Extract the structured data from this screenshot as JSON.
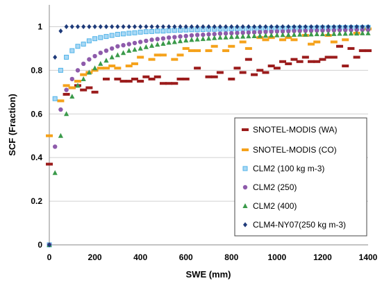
{
  "chart_data": {
    "type": "scatter",
    "xlabel": "SWE (mm)",
    "ylabel": "SCF (Fraction)",
    "xlim": [
      0,
      1400
    ],
    "ylim": [
      0,
      1.1
    ],
    "xticks": [
      "0",
      "200",
      "400",
      "600",
      "800",
      "1000",
      "1200",
      "1400"
    ],
    "yticks": [
      "0",
      "0.2",
      "0.4",
      "0.6",
      "0.8",
      "1"
    ],
    "grid": "horizontal",
    "legend_position": "right",
    "series": [
      {
        "name": "SNOTEL-MODIS (WA)",
        "marker": "dash",
        "color": "#9b1c1c",
        "x": [
          0,
          75,
          100,
          125,
          150,
          175,
          200,
          250,
          300,
          325,
          350,
          375,
          400,
          425,
          450,
          475,
          500,
          525,
          550,
          575,
          600,
          650,
          700,
          725,
          750,
          800,
          825,
          850,
          875,
          900,
          925,
          950,
          975,
          1000,
          1025,
          1050,
          1075,
          1100,
          1125,
          1150,
          1175,
          1200,
          1225,
          1250,
          1275,
          1300,
          1325,
          1350,
          1375,
          1400
        ],
        "y": [
          0.37,
          0.69,
          0.72,
          0.73,
          0.71,
          0.72,
          0.7,
          0.76,
          0.76,
          0.75,
          0.75,
          0.76,
          0.75,
          0.77,
          0.76,
          0.77,
          0.74,
          0.74,
          0.74,
          0.76,
          0.76,
          0.81,
          0.77,
          0.77,
          0.79,
          0.76,
          0.81,
          0.79,
          0.85,
          0.78,
          0.8,
          0.79,
          0.82,
          0.81,
          0.84,
          0.83,
          0.85,
          0.84,
          0.86,
          0.84,
          0.84,
          0.85,
          0.86,
          0.86,
          0.91,
          0.82,
          0.9,
          0.86,
          0.89,
          0.89
        ]
      },
      {
        "name": "SNOTEL-MODIS (CO)",
        "marker": "dash",
        "color": "#f5a21b",
        "x": [
          0,
          50,
          75,
          100,
          125,
          150,
          175,
          200,
          225,
          250,
          275,
          300,
          350,
          375,
          400,
          450,
          475,
          500,
          550,
          575,
          600,
          625,
          650,
          700,
          725,
          775,
          800,
          850,
          875,
          925,
          950,
          975,
          1025,
          1050,
          1075,
          1125,
          1150,
          1175,
          1225,
          1250,
          1300,
          1350,
          1400
        ],
        "y": [
          0.5,
          0.66,
          0.73,
          0.72,
          0.75,
          0.78,
          0.79,
          0.8,
          0.81,
          0.81,
          0.82,
          0.81,
          0.82,
          0.83,
          0.86,
          0.85,
          0.87,
          0.87,
          0.85,
          0.87,
          0.9,
          0.89,
          0.89,
          0.89,
          0.91,
          0.89,
          0.91,
          0.93,
          0.9,
          0.95,
          0.94,
          0.95,
          0.94,
          0.95,
          0.94,
          0.96,
          0.92,
          0.93,
          0.96,
          0.93,
          0.94,
          0.97,
          0.99
        ]
      },
      {
        "name": "CLM2 (100 kg m-3)",
        "marker": "square",
        "color": "#4fb3e8",
        "x": [
          0,
          25,
          50,
          75,
          100,
          125,
          150,
          175,
          200,
          225,
          250,
          275,
          300,
          325,
          350,
          375,
          400,
          425,
          450,
          475,
          500,
          525,
          550,
          575,
          600,
          625,
          650,
          675,
          700,
          725,
          750,
          775,
          800,
          825,
          850,
          875,
          900,
          925,
          950,
          975,
          1000,
          1025,
          1050,
          1075,
          1100,
          1125,
          1150,
          1175,
          1200,
          1225,
          1250,
          1275,
          1300,
          1325,
          1350,
          1375,
          1400
        ],
        "y": [
          0.0,
          0.67,
          0.8,
          0.86,
          0.89,
          0.91,
          0.92,
          0.935,
          0.945,
          0.95,
          0.955,
          0.96,
          0.965,
          0.967,
          0.97,
          0.972,
          0.975,
          0.977,
          0.978,
          0.98,
          0.98,
          0.982,
          0.983,
          0.984,
          0.985,
          0.986,
          0.986,
          0.987,
          0.988,
          0.988,
          0.989,
          0.989,
          0.99,
          0.99,
          0.99,
          0.991,
          0.991,
          0.992,
          0.992,
          0.992,
          0.993,
          0.993,
          0.993,
          0.994,
          0.994,
          0.994,
          0.994,
          0.995,
          0.995,
          0.995,
          0.995,
          0.996,
          0.996,
          0.996,
          0.996,
          0.996,
          0.997
        ]
      },
      {
        "name": "CLM2 (250)",
        "marker": "circle",
        "color": "#8e5bab",
        "x": [
          0,
          25,
          50,
          75,
          100,
          125,
          150,
          175,
          200,
          225,
          250,
          275,
          300,
          325,
          350,
          375,
          400,
          425,
          450,
          475,
          500,
          525,
          550,
          575,
          600,
          625,
          650,
          675,
          700,
          725,
          750,
          775,
          800,
          825,
          850,
          875,
          900,
          925,
          950,
          975,
          1000,
          1025,
          1050,
          1075,
          1100,
          1125,
          1150,
          1175,
          1200,
          1225,
          1250,
          1275,
          1300,
          1325,
          1350,
          1375,
          1400
        ],
        "y": [
          0.0,
          0.45,
          0.62,
          0.71,
          0.76,
          0.8,
          0.83,
          0.85,
          0.865,
          0.88,
          0.89,
          0.9,
          0.91,
          0.915,
          0.92,
          0.925,
          0.93,
          0.935,
          0.94,
          0.943,
          0.946,
          0.95,
          0.952,
          0.955,
          0.957,
          0.96,
          0.962,
          0.963,
          0.965,
          0.966,
          0.968,
          0.969,
          0.97,
          0.971,
          0.972,
          0.973,
          0.974,
          0.975,
          0.976,
          0.977,
          0.978,
          0.978,
          0.979,
          0.98,
          0.98,
          0.981,
          0.981,
          0.982,
          0.982,
          0.983,
          0.983,
          0.984,
          0.984,
          0.984,
          0.985,
          0.985,
          0.985
        ]
      },
      {
        "name": "CLM2 (400)",
        "marker": "triangle",
        "color": "#3a9a4a",
        "x": [
          0,
          25,
          50,
          75,
          100,
          125,
          150,
          175,
          200,
          225,
          250,
          275,
          300,
          325,
          350,
          375,
          400,
          425,
          450,
          475,
          500,
          525,
          550,
          575,
          600,
          625,
          650,
          675,
          700,
          725,
          750,
          775,
          800,
          825,
          850,
          875,
          900,
          925,
          950,
          975,
          1000,
          1025,
          1050,
          1075,
          1100,
          1125,
          1150,
          1175,
          1200,
          1225,
          1250,
          1275,
          1300,
          1325,
          1350,
          1375,
          1400
        ],
        "y": [
          0.0,
          0.33,
          0.5,
          0.6,
          0.68,
          0.73,
          0.76,
          0.79,
          0.81,
          0.83,
          0.845,
          0.86,
          0.87,
          0.88,
          0.89,
          0.895,
          0.9,
          0.907,
          0.913,
          0.918,
          0.922,
          0.927,
          0.93,
          0.934,
          0.937,
          0.94,
          0.942,
          0.944,
          0.946,
          0.948,
          0.95,
          0.951,
          0.953,
          0.954,
          0.955,
          0.956,
          0.957,
          0.958,
          0.959,
          0.96,
          0.961,
          0.962,
          0.962,
          0.963,
          0.964,
          0.964,
          0.965,
          0.966,
          0.966,
          0.967,
          0.967,
          0.968,
          0.968,
          0.969,
          0.969,
          0.97,
          0.97
        ]
      },
      {
        "name": "CLM4-NY07(250 kg m-3)",
        "marker": "diamond",
        "color": "#1f3b7a",
        "x": [
          0,
          25,
          50,
          75,
          100,
          125,
          150,
          175,
          200,
          225,
          250,
          275,
          300,
          325,
          350,
          375,
          400,
          425,
          450,
          475,
          500,
          525,
          550,
          575,
          600,
          625,
          650,
          675,
          700,
          725,
          750,
          775,
          800,
          825,
          850,
          875,
          900,
          925,
          950,
          975,
          1000,
          1025,
          1050,
          1075,
          1100,
          1125,
          1150,
          1175,
          1200,
          1225,
          1250,
          1275,
          1300,
          1325,
          1350,
          1375,
          1400
        ],
        "y": [
          0.0,
          0.86,
          0.98,
          1.0,
          1.0,
          1.0,
          1.0,
          1.0,
          1.0,
          1.0,
          1.0,
          1.0,
          1.0,
          1.0,
          1.0,
          1.0,
          1.0,
          1.0,
          1.0,
          1.0,
          1.0,
          1.0,
          1.0,
          1.0,
          1.0,
          1.0,
          1.0,
          1.0,
          1.0,
          1.0,
          1.0,
          1.0,
          1.0,
          1.0,
          1.0,
          1.0,
          1.0,
          1.0,
          1.0,
          1.0,
          1.0,
          1.0,
          1.0,
          1.0,
          1.0,
          1.0,
          1.0,
          1.0,
          1.0,
          1.0,
          1.0,
          1.0,
          1.0,
          1.0,
          1.0,
          1.0,
          1.0
        ]
      }
    ]
  }
}
